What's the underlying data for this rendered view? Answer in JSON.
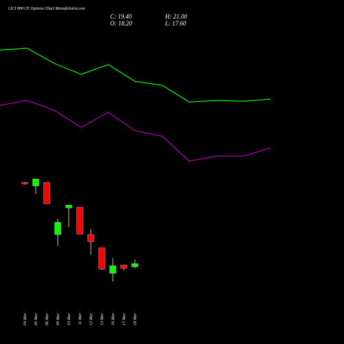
{
  "chart_data": {
    "type": "candlestick",
    "title": "LICI 880 CE Options Chart MunafaSutra.com",
    "info": [
      "C: 19.40",
      "H: 21.00",
      "O: 18.20",
      "L: 17.60"
    ],
    "categories": [
      "04 Mar",
      "05 Mar",
      "06 Mar",
      "09 Mar",
      "10 Mar",
      "11 Mar",
      "12 Mar",
      "13 Mar",
      "16 Mar",
      "17 Mar",
      "18 Mar"
    ],
    "open": [
      50.45,
      49.1,
      50.45,
      30.5,
      40.7,
      41.0,
      30.5,
      25.5,
      15.7,
      18.9,
      18.2
    ],
    "high": [
      50.7,
      51.8,
      50.45,
      36.5,
      41.8,
      41.0,
      32.6,
      25.5,
      21.5,
      18.9,
      21.0
    ],
    "low": [
      49.6,
      46.0,
      42.3,
      26.2,
      33.4,
      30.7,
      22.8,
      17.0,
      12.6,
      16.8,
      17.6
    ],
    "close": [
      49.9,
      51.8,
      42.3,
      35.2,
      41.8,
      30.7,
      27.8,
      17.3,
      18.6,
      17.6,
      19.4
    ],
    "up_color": "#00ff00",
    "down_color": "#ff0000",
    "series": [
      {
        "color": "#00ff00",
        "values": [
          101.0,
          101.8,
          96.0,
          91.8,
          95.5,
          89.1,
          87.6,
          81.2,
          81.8,
          81.5,
          82.3
        ]
      },
      {
        "color": "#b000b0",
        "values": [
          79.9,
          81.8,
          78.1,
          71.5,
          77.3,
          70.2,
          68.1,
          58.6,
          60.5,
          60.5,
          63.6
        ]
      }
    ]
  }
}
